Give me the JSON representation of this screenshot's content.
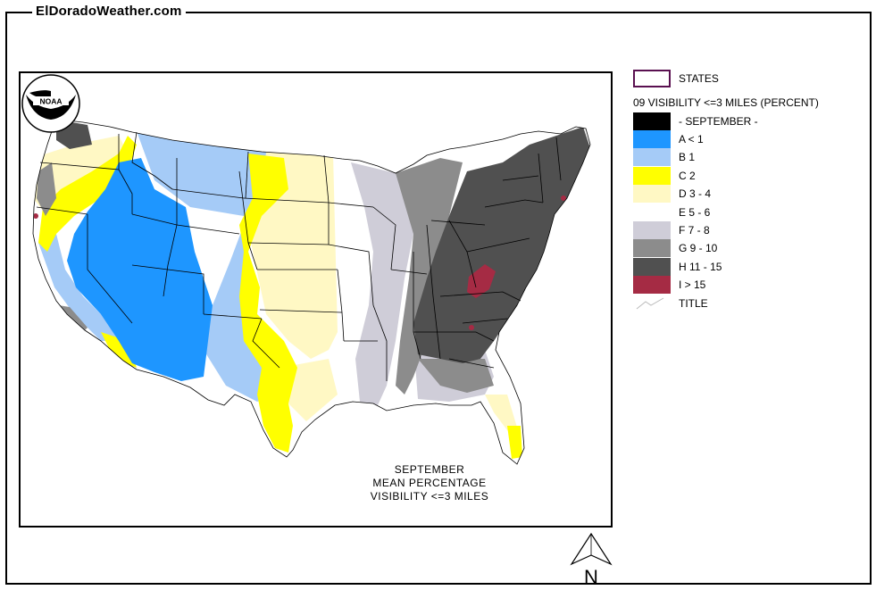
{
  "site": {
    "title": "ElDoradoWeather.com"
  },
  "map": {
    "caption": [
      "SEPTEMBER",
      "MEAN PERCENTAGE",
      "VISIBILITY <=3 MILES"
    ],
    "logo_text": "NOAA"
  },
  "legend": {
    "states_label": "STATES",
    "heading": "09 VISIBILITY <=3 MILES (PERCENT)",
    "month_label": "- SEPTEMBER -",
    "items": [
      {
        "label": "A < 1",
        "color": "#1e96ff"
      },
      {
        "label": "B 1",
        "color": "#a5cbf7"
      },
      {
        "label": "C 2",
        "color": "#ffff00"
      },
      {
        "label": "D 3 - 4",
        "color": "#fff8c4"
      },
      {
        "label": "E 5 - 6",
        "color": "#ffffff"
      },
      {
        "label": "F 7 - 8",
        "color": "#cfcdd8"
      },
      {
        "label": "G 9 - 10",
        "color": "#8c8c8c"
      },
      {
        "label": "H 11 - 15",
        "color": "#505050"
      },
      {
        "label": "I > 15",
        "color": "#a52b44"
      }
    ],
    "title_label": "TITLE",
    "states_outline_color": "#5a1050"
  },
  "north_arrow": {
    "label": "N"
  }
}
